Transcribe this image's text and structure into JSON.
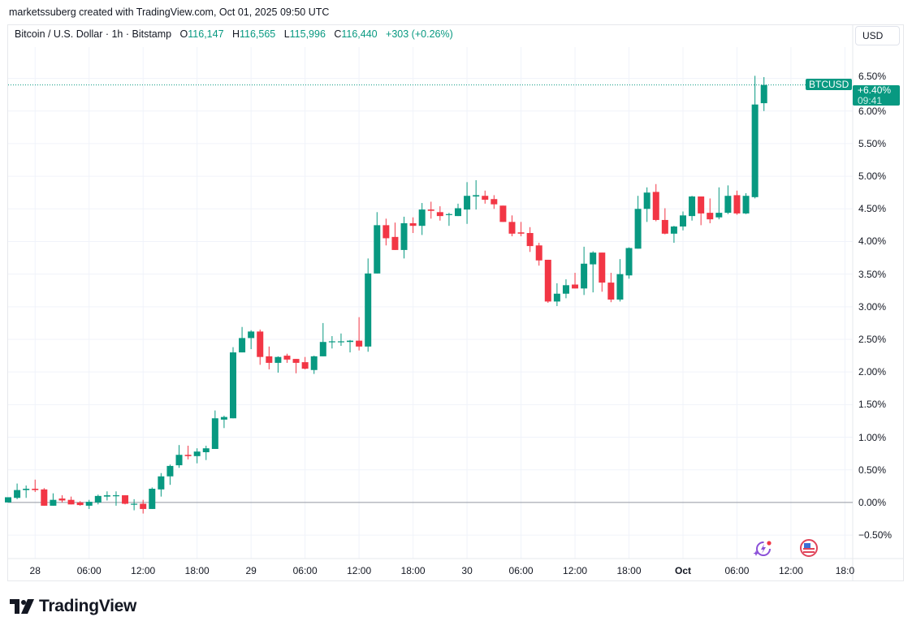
{
  "credit": "marketssuberg created with TradingView.com, Oct 01, 2025 09:50 UTC",
  "legend": {
    "symbol": "Bitcoin / U.S. Dollar · 1h · Bitstamp",
    "o_label": "O",
    "o": "116,147",
    "h_label": "H",
    "h": "116,565",
    "l_label": "L",
    "l": "115,996",
    "c_label": "C",
    "c": "116,440",
    "change": "+303 (+0.26%)"
  },
  "currency_button": "USD",
  "price_tag": {
    "symbol": "BTCUSD",
    "value": "+6.40%",
    "countdown": "09:41"
  },
  "logo_text": "TradingView",
  "icons": {
    "events": "lightning-sparkle-icon",
    "economic": "us-flag-icon"
  },
  "colors": {
    "up": "#089981",
    "down": "#f23645",
    "grid": "#f0f3fa",
    "zero_line": "#9598a1"
  },
  "chart_data": {
    "type": "candlestick",
    "title": "Bitcoin / U.S. Dollar · 1h · Bitstamp",
    "y_unit": "percent change",
    "ylim": [
      -0.86,
      6.98
    ],
    "grid": true,
    "y_ticks": [
      "6.50%",
      "6.00%",
      "5.50%",
      "5.00%",
      "4.50%",
      "4.00%",
      "3.50%",
      "3.00%",
      "2.50%",
      "2.00%",
      "1.50%",
      "1.00%",
      "0.50%",
      "0.00%",
      "−0.50%"
    ],
    "y_tick_values": [
      6.5,
      6.0,
      5.5,
      5.0,
      4.5,
      4.0,
      3.5,
      3.0,
      2.5,
      2.0,
      1.5,
      1.0,
      0.5,
      0.0,
      -0.5
    ],
    "x_ticks": [
      "28",
      "06:00",
      "12:00",
      "18:00",
      "29",
      "06:00",
      "12:00",
      "18:00",
      "30",
      "06:00",
      "12:00",
      "18:00",
      "Oct",
      "06:00",
      "12:00",
      "18:0"
    ],
    "x_tick_bold": [
      false,
      false,
      false,
      false,
      false,
      false,
      false,
      false,
      false,
      false,
      false,
      false,
      true,
      false,
      false,
      false
    ],
    "x_tick_hour_index": [
      3,
      9,
      15,
      21,
      27,
      33,
      39,
      45,
      51,
      57,
      63,
      69,
      75,
      81,
      87,
      93
    ],
    "ohlc": [
      [
        0.0,
        0.08,
        0.0,
        0.08
      ],
      [
        0.07,
        0.29,
        0.05,
        0.19
      ],
      [
        0.19,
        0.26,
        0.07,
        0.21
      ],
      [
        0.21,
        0.35,
        0.16,
        0.19
      ],
      [
        0.2,
        0.22,
        -0.05,
        -0.05
      ],
      [
        -0.05,
        0.14,
        -0.05,
        0.04
      ],
      [
        0.06,
        0.11,
        0.0,
        0.03
      ],
      [
        0.04,
        0.09,
        -0.03,
        -0.03
      ],
      [
        0.0,
        0.02,
        -0.05,
        -0.04
      ],
      [
        -0.05,
        0.04,
        -0.1,
        0.01
      ],
      [
        0.0,
        0.12,
        -0.03,
        0.1
      ],
      [
        0.09,
        0.17,
        0.03,
        0.11
      ],
      [
        0.1,
        0.17,
        -0.05,
        0.11
      ],
      [
        0.11,
        0.11,
        -0.03,
        -0.02
      ],
      [
        -0.03,
        0.05,
        -0.12,
        -0.02
      ],
      [
        -0.02,
        0.04,
        -0.17,
        -0.1
      ],
      [
        -0.1,
        0.23,
        -0.1,
        0.21
      ],
      [
        0.2,
        0.45,
        0.09,
        0.4
      ],
      [
        0.4,
        0.58,
        0.27,
        0.56
      ],
      [
        0.57,
        0.88,
        0.53,
        0.73
      ],
      [
        0.73,
        0.87,
        0.66,
        0.71
      ],
      [
        0.71,
        0.83,
        0.6,
        0.78
      ],
      [
        0.77,
        0.87,
        0.65,
        0.83
      ],
      [
        0.82,
        1.41,
        0.82,
        1.29
      ],
      [
        1.27,
        1.33,
        1.14,
        1.31
      ],
      [
        1.29,
        2.38,
        1.29,
        2.3
      ],
      [
        2.3,
        2.69,
        2.3,
        2.52
      ],
      [
        2.52,
        2.64,
        2.35,
        2.62
      ],
      [
        2.62,
        2.65,
        2.11,
        2.23
      ],
      [
        2.24,
        2.39,
        2.04,
        2.14
      ],
      [
        2.14,
        2.24,
        1.99,
        2.23
      ],
      [
        2.25,
        2.28,
        2.14,
        2.19
      ],
      [
        2.2,
        2.2,
        1.98,
        2.14
      ],
      [
        2.15,
        2.23,
        2.04,
        2.05
      ],
      [
        2.03,
        2.25,
        1.97,
        2.24
      ],
      [
        2.24,
        2.75,
        2.24,
        2.46
      ],
      [
        2.46,
        2.55,
        2.36,
        2.47
      ],
      [
        2.46,
        2.59,
        2.4,
        2.47
      ],
      [
        2.46,
        2.49,
        2.3,
        2.48
      ],
      [
        2.48,
        2.84,
        2.33,
        2.39
      ],
      [
        2.39,
        3.74,
        2.31,
        3.51
      ],
      [
        3.51,
        4.45,
        3.51,
        4.25
      ],
      [
        4.25,
        4.35,
        3.94,
        4.05
      ],
      [
        4.07,
        4.29,
        3.87,
        3.87
      ],
      [
        3.87,
        4.38,
        3.74,
        4.28
      ],
      [
        4.28,
        4.37,
        4.13,
        4.24
      ],
      [
        4.24,
        4.59,
        4.1,
        4.49
      ],
      [
        4.49,
        4.61,
        4.35,
        4.47
      ],
      [
        4.45,
        4.54,
        4.32,
        4.39
      ],
      [
        4.41,
        4.44,
        4.24,
        4.42
      ],
      [
        4.39,
        4.58,
        4.39,
        4.51
      ],
      [
        4.49,
        4.91,
        4.27,
        4.7
      ],
      [
        4.69,
        4.94,
        4.49,
        4.71
      ],
      [
        4.7,
        4.78,
        4.58,
        4.64
      ],
      [
        4.65,
        4.71,
        4.5,
        4.57
      ],
      [
        4.55,
        4.55,
        4.3,
        4.3
      ],
      [
        4.3,
        4.4,
        4.08,
        4.12
      ],
      [
        4.14,
        4.3,
        4.08,
        4.12
      ],
      [
        4.13,
        4.22,
        3.84,
        3.93
      ],
      [
        3.94,
        3.98,
        3.63,
        3.71
      ],
      [
        3.72,
        3.72,
        3.06,
        3.08
      ],
      [
        3.08,
        3.36,
        3.01,
        3.2
      ],
      [
        3.2,
        3.42,
        3.13,
        3.33
      ],
      [
        3.34,
        3.52,
        3.28,
        3.28
      ],
      [
        3.28,
        3.92,
        3.18,
        3.66
      ],
      [
        3.65,
        3.85,
        3.22,
        3.83
      ],
      [
        3.83,
        3.83,
        3.23,
        3.37
      ],
      [
        3.37,
        3.52,
        3.07,
        3.11
      ],
      [
        3.11,
        3.73,
        3.08,
        3.5
      ],
      [
        3.48,
        3.91,
        3.43,
        3.9
      ],
      [
        3.89,
        4.7,
        3.89,
        4.5
      ],
      [
        4.5,
        4.83,
        4.3,
        4.75
      ],
      [
        4.76,
        4.88,
        4.31,
        4.33
      ],
      [
        4.33,
        4.51,
        4.11,
        4.12
      ],
      [
        4.12,
        4.24,
        3.98,
        4.23
      ],
      [
        4.23,
        4.46,
        4.17,
        4.4
      ],
      [
        4.39,
        4.7,
        4.32,
        4.69
      ],
      [
        4.69,
        4.69,
        4.25,
        4.43
      ],
      [
        4.44,
        4.66,
        4.28,
        4.34
      ],
      [
        4.37,
        4.83,
        4.34,
        4.44
      ],
      [
        4.44,
        4.86,
        4.42,
        4.7
      ],
      [
        4.71,
        4.78,
        4.41,
        4.43
      ],
      [
        4.43,
        4.74,
        4.42,
        4.7
      ],
      [
        4.68,
        6.54,
        4.66,
        6.1
      ],
      [
        6.12,
        6.52,
        6.0,
        6.4
      ]
    ],
    "last_value": 6.4
  }
}
